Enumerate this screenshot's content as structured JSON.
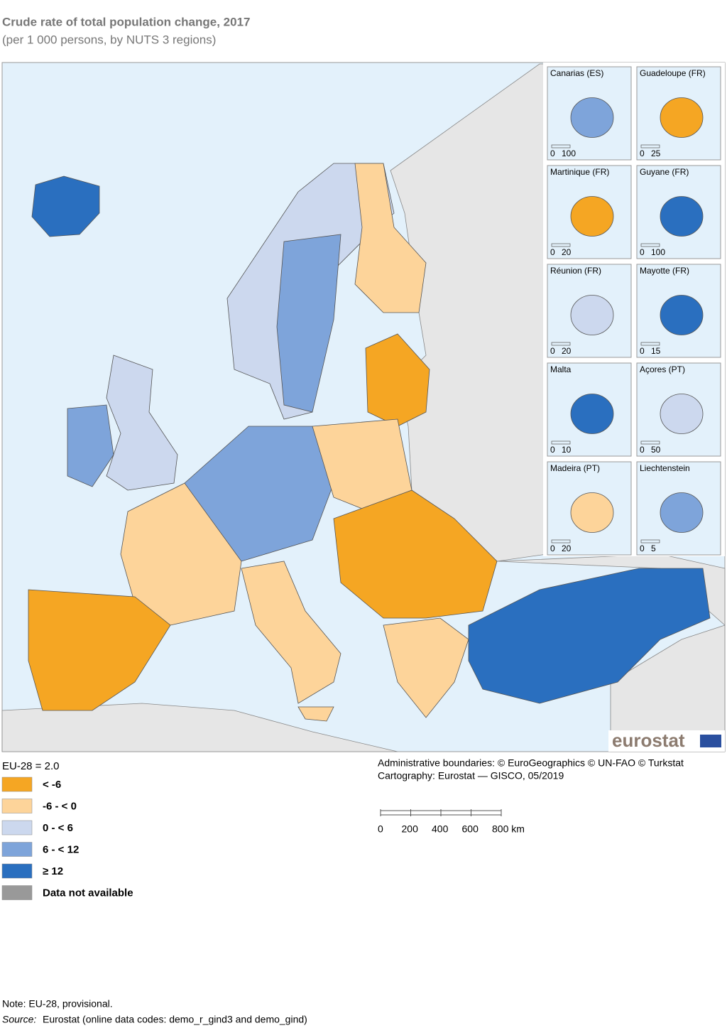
{
  "title": "Crude rate of total population change, 2017",
  "subtitle": "(per 1 000 persons, by NUTS 3 regions)",
  "insets": [
    {
      "name": "Canarias (ES)",
      "scale": [
        "0",
        "100"
      ]
    },
    {
      "name": "Guadeloupe (FR)",
      "scale": [
        "0",
        "25"
      ]
    },
    {
      "name": "Martinique (FR)",
      "scale": [
        "0",
        "20"
      ]
    },
    {
      "name": "Guyane (FR)",
      "scale": [
        "0",
        "100"
      ]
    },
    {
      "name": "Réunion (FR)",
      "scale": [
        "0",
        "20"
      ]
    },
    {
      "name": "Mayotte (FR)",
      "scale": [
        "0",
        "15"
      ]
    },
    {
      "name": "Malta",
      "scale": [
        "0",
        "10"
      ]
    },
    {
      "name": "Açores (PT)",
      "scale": [
        "0",
        "50"
      ]
    },
    {
      "name": "Madeira (PT)",
      "scale": [
        "0",
        "20"
      ]
    },
    {
      "name": "Liechtenstein",
      "scale": [
        "0",
        "5"
      ]
    }
  ],
  "legend": {
    "title": "EU-28 = 2.0",
    "items": [
      {
        "label": "< -6",
        "color": "#f5a623"
      },
      {
        "label": "-6 - < 0",
        "color": "#fdd49a"
      },
      {
        "label": "0 - < 6",
        "color": "#ccd8ee"
      },
      {
        "label": "6 - < 12",
        "color": "#7ea4da"
      },
      {
        "label": "≥ 12",
        "color": "#2a6fbf"
      },
      {
        "label": "Data not available",
        "color": "#999999"
      }
    ]
  },
  "credits": [
    "Administrative boundaries: © EuroGeographics © UN-FAO © Turkstat",
    "Cartography: Eurostat — GISCO, 05/2019"
  ],
  "scalebar": [
    "0",
    "200",
    "400",
    "600",
    "800 km"
  ],
  "logo": "eurostat",
  "note": "Note: EU-28, provisional.",
  "source": {
    "label": "Source:",
    "text": "Eurostat (online data codes: demo_r_gind3 and demo_gind)"
  }
}
